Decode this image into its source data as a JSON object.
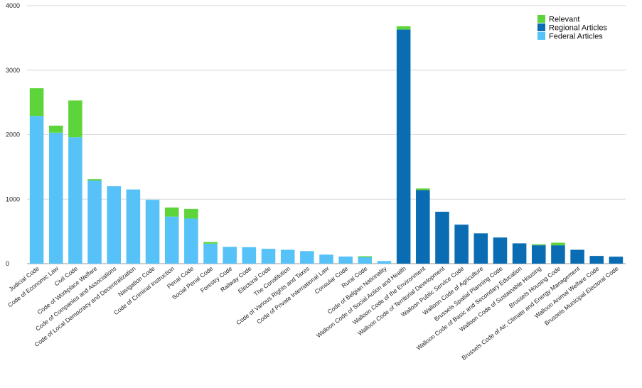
{
  "chart_data": {
    "type": "bar",
    "stacked": true,
    "ylim": [
      0,
      4000
    ],
    "yticks": [
      0,
      1000,
      2000,
      3000,
      4000
    ],
    "grid": true,
    "legend_position": "top-right",
    "legend": [
      {
        "name": "Relevant",
        "color": "#5dd43a"
      },
      {
        "name": "Regional Articles",
        "color": "#0a6db3"
      },
      {
        "name": "Federal Articles",
        "color": "#56c2f7"
      }
    ],
    "categories": [
      "Judicial Code",
      "Code of Economic Law",
      "Civil Code",
      "Code of Workplace Welfare",
      "Code of Companies and Associations",
      "Code of Local Democracy and Decentralization",
      "Navigation Code",
      "Code of Criminal Instruction",
      "Penal Code",
      "Social Penal Code",
      "Forestry Code",
      "Railway Code",
      "Electoral Code",
      "The Constitution",
      "Code of Various Rights and Taxes",
      "Code of Private International Law",
      "Consular Code",
      "Rural Code",
      "Code of Belgian Nationality",
      "Walloon Code of Social Action and Health",
      "Walloon Code of the Environment",
      "Walloon Code of Territorial Development",
      "Walloon Public Service Code",
      "Walloon Code of Agriculture",
      "Brussels Spatial Planning Code",
      "Walloon Code of Basic and Secondary Education",
      "Walloon Code of Sustainable Housing",
      "Brussels Housing Code",
      "Brussels Code of Air, Climate and Energy Management",
      "Walloon Animal Welfare Code",
      "Brussels Municipal Electoral Code"
    ],
    "series": [
      {
        "name": "Federal Articles",
        "values": [
          2290,
          2030,
          1960,
          1290,
          1200,
          1150,
          990,
          730,
          700,
          310,
          260,
          255,
          230,
          215,
          195,
          140,
          110,
          100,
          40,
          0,
          0,
          0,
          0,
          0,
          0,
          0,
          0,
          0,
          0,
          0,
          0
        ]
      },
      {
        "name": "Regional Articles",
        "values": [
          0,
          0,
          0,
          0,
          0,
          0,
          0,
          0,
          0,
          0,
          0,
          0,
          0,
          0,
          0,
          0,
          0,
          0,
          0,
          3630,
          1140,
          805,
          605,
          470,
          405,
          315,
          285,
          285,
          215,
          120,
          108
        ]
      },
      {
        "name": "Relevant",
        "values": [
          430,
          110,
          570,
          20,
          0,
          0,
          0,
          140,
          150,
          25,
          0,
          0,
          0,
          0,
          0,
          0,
          0,
          15,
          0,
          50,
          25,
          0,
          0,
          0,
          0,
          0,
          15,
          40,
          0,
          0,
          0
        ]
      }
    ]
  }
}
